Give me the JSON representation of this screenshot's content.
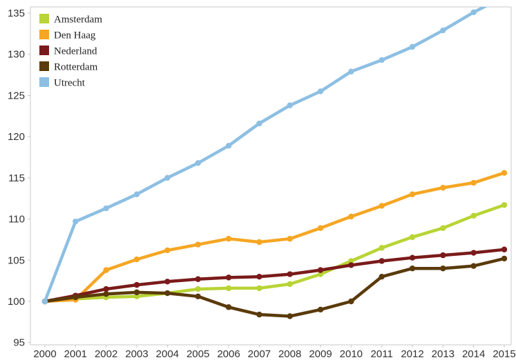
{
  "chart_data": {
    "type": "line",
    "title": "",
    "xlabel": "",
    "ylabel": "",
    "x": [
      "2000",
      "2001",
      "2002",
      "2003",
      "2004",
      "2005",
      "2006",
      "2007",
      "2008",
      "2009",
      "2010",
      "2011",
      "2012",
      "2013",
      "2014",
      "2015"
    ],
    "yticks": [
      "95",
      "100",
      "105",
      "110",
      "115",
      "120",
      "125",
      "130",
      "135"
    ],
    "ylim": [
      94,
      135.5
    ],
    "grid": false,
    "legend_position": "top-left",
    "series": [
      {
        "name": "Amsterdam",
        "color": "#b8d435",
        "values": [
          100.0,
          100.3,
          100.5,
          100.6,
          101.0,
          101.5,
          101.6,
          101.6,
          102.1,
          103.3,
          104.9,
          106.5,
          107.8,
          108.9,
          110.4,
          111.7
        ]
      },
      {
        "name": "Den Haag",
        "color": "#f5a623",
        "values": [
          100.0,
          100.2,
          103.8,
          105.1,
          106.2,
          106.9,
          107.6,
          107.2,
          107.6,
          108.9,
          110.3,
          111.6,
          113.0,
          113.8,
          114.4,
          115.6
        ]
      },
      {
        "name": "Nederland",
        "color": "#7a1a1a",
        "values": [
          100.0,
          100.7,
          101.5,
          102.0,
          102.4,
          102.7,
          102.9,
          103.0,
          103.3,
          103.8,
          104.4,
          104.9,
          105.3,
          105.6,
          105.9,
          106.3
        ]
      },
      {
        "name": "Rotterdam",
        "color": "#5a3a0a",
        "values": [
          100.0,
          100.5,
          100.9,
          101.1,
          101.0,
          100.6,
          99.3,
          98.4,
          98.2,
          99.0,
          100.0,
          103.0,
          104.0,
          104.0,
          104.3,
          105.2
        ]
      },
      {
        "name": "Utrecht",
        "color": "#8dbfe3",
        "values": [
          100.0,
          109.7,
          111.3,
          113.0,
          115.0,
          116.8,
          118.9,
          121.6,
          123.8,
          125.5,
          127.9,
          129.3,
          130.9,
          132.9,
          135.1,
          137.0
        ]
      }
    ]
  }
}
